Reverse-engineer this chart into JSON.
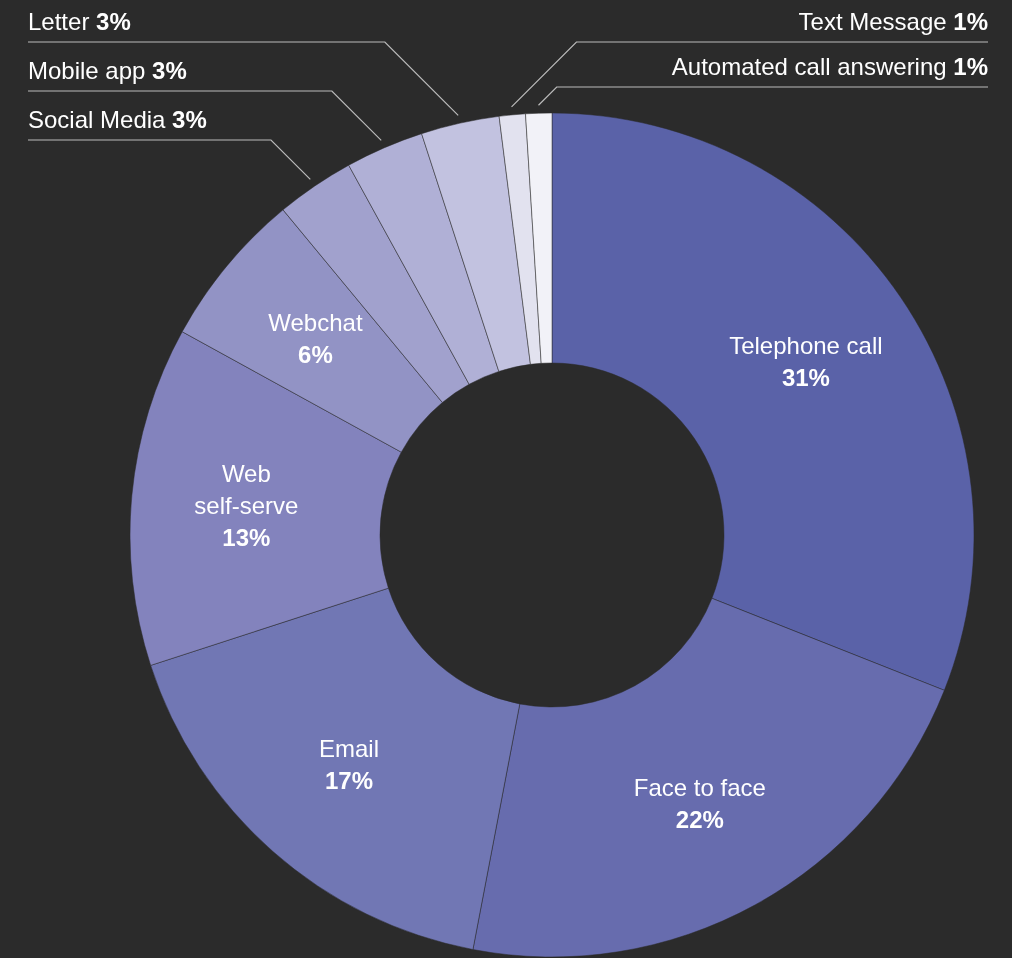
{
  "chart_data": {
    "type": "donut",
    "categories": [
      "Telephone call",
      "Face to face",
      "Email",
      "Web self-serve",
      "Webchat",
      "Social Media",
      "Mobile app",
      "Letter",
      "Text Message",
      "Automated call answering"
    ],
    "values": [
      31,
      22,
      17,
      13,
      6,
      3,
      3,
      3,
      1,
      1
    ],
    "colors": [
      "#5a62a8",
      "#676cae",
      "#7177b4",
      "#8383bd",
      "#9293c5",
      "#a1a1cd",
      "#b0b0d6",
      "#c2c2e0",
      "#e2e2ef",
      "#f2f2f8"
    ],
    "value_labels": [
      "31%",
      "22%",
      "17%",
      "13%",
      "6%",
      "3%",
      "3%",
      "3%",
      "1%",
      "1%"
    ]
  }
}
